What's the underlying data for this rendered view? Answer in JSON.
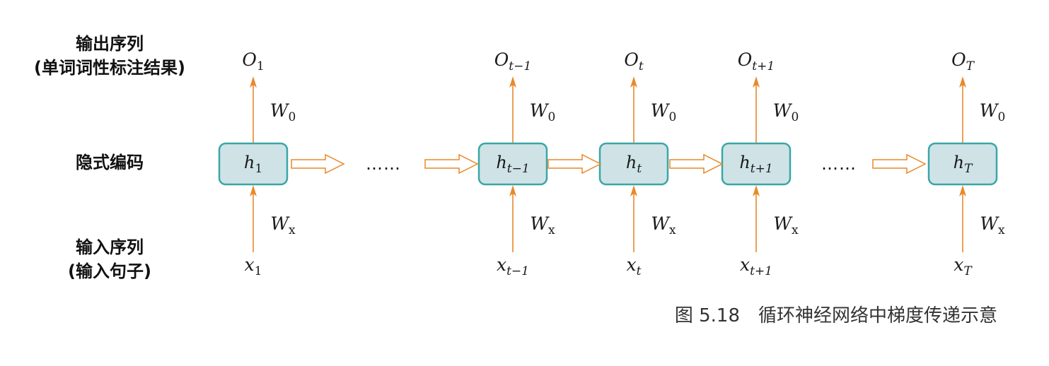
{
  "row_labels": {
    "output_line1": "输出序列",
    "output_line2": "(单词词性标注结果)",
    "hidden": "隐式编码",
    "input_line1": "输入序列",
    "input_line2": "(输入句子)"
  },
  "columns": [
    {
      "output": {
        "base": "O",
        "sub": "1",
        "sub_italic": false
      },
      "hidden": {
        "base": "h",
        "sub": "1",
        "sub_italic": false
      },
      "input": {
        "base": "x",
        "sub": "1",
        "sub_italic": false
      },
      "w_out": {
        "base": "W",
        "sub": "0"
      },
      "w_in": {
        "base": "W",
        "sub": "x"
      }
    },
    {
      "output": {
        "base": "O",
        "sub": "t−1",
        "sub_italic": true
      },
      "hidden": {
        "base": "h",
        "sub": "t−1",
        "sub_italic": true
      },
      "input": {
        "base": "x",
        "sub": "t−1",
        "sub_italic": true
      },
      "w_out": {
        "base": "W",
        "sub": "0"
      },
      "w_in": {
        "base": "W",
        "sub": "x"
      }
    },
    {
      "output": {
        "base": "O",
        "sub": "t",
        "sub_italic": true
      },
      "hidden": {
        "base": "h",
        "sub": "t",
        "sub_italic": true
      },
      "input": {
        "base": "x",
        "sub": "t",
        "sub_italic": true
      },
      "w_out": {
        "base": "W",
        "sub": "0"
      },
      "w_in": {
        "base": "W",
        "sub": "x"
      }
    },
    {
      "output": {
        "base": "O",
        "sub": "t+1",
        "sub_italic": true
      },
      "hidden": {
        "base": "h",
        "sub": "t+1",
        "sub_italic": true
      },
      "input": {
        "base": "x",
        "sub": "t+1",
        "sub_italic": true
      },
      "w_out": {
        "base": "W",
        "sub": "0"
      },
      "w_in": {
        "base": "W",
        "sub": "x"
      }
    },
    {
      "output": {
        "base": "O",
        "sub": "T",
        "sub_italic": true
      },
      "hidden": {
        "base": "h",
        "sub": "T",
        "sub_italic": true
      },
      "input": {
        "base": "x",
        "sub": "T",
        "sub_italic": true
      },
      "w_out": {
        "base": "W",
        "sub": "0"
      },
      "w_in": {
        "base": "W",
        "sub": "x"
      }
    }
  ],
  "ellipsis": "……",
  "caption": "图 5.18　循环神经网络中梯度传递示意",
  "colors": {
    "cell_fill": "#cfe3e6",
    "cell_stroke": "#3aa6a8",
    "arrow": "#e8892b"
  }
}
